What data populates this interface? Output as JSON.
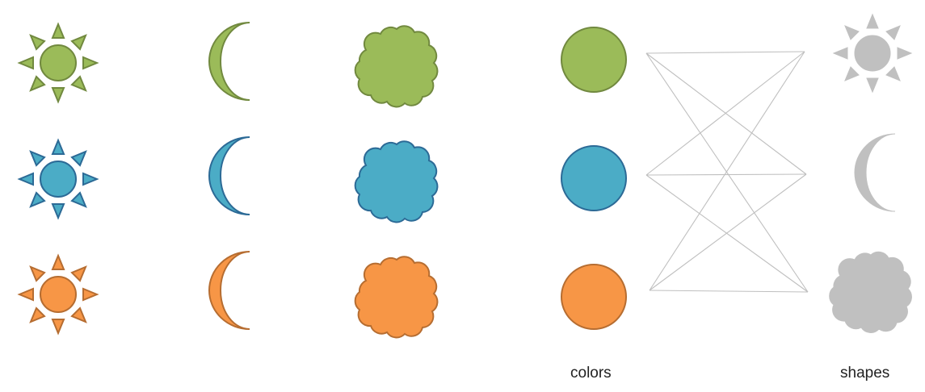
{
  "labels": {
    "colors": "colors",
    "shapes": "shapes"
  },
  "colors": [
    {
      "name": "green",
      "fill": "#9BBB59",
      "stroke": "#71893F"
    },
    {
      "name": "blue",
      "fill": "#4BACC6",
      "stroke": "#2C6A96"
    },
    {
      "name": "orange",
      "fill": "#F79646",
      "stroke": "#B66D31"
    }
  ],
  "shape_names": [
    "sun",
    "moon",
    "cloud"
  ],
  "shape_node_color": {
    "fill": "#C0C0C0",
    "stroke": "#C0C0C0"
  },
  "connector_color": "#BFBFBF"
}
